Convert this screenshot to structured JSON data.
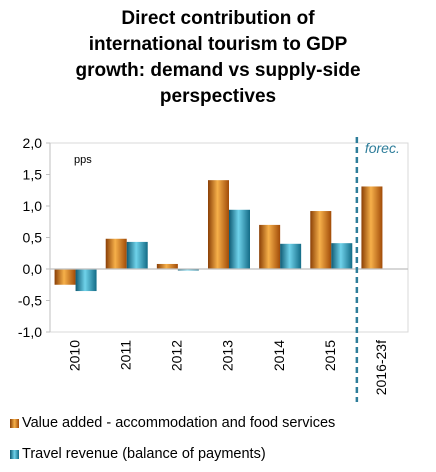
{
  "chart_data": {
    "type": "bar",
    "title_lines": [
      "Direct contribution of",
      "international tourism to GDP",
      "growth: demand vs supply-side",
      "perspectives"
    ],
    "unit_label": "pps",
    "forecast_label": "forec.",
    "categories": [
      "2010",
      "2011",
      "2012",
      "2013",
      "2014",
      "2015",
      "2016-23f"
    ],
    "series": [
      {
        "name": "Value added - accommodation and food services",
        "values": [
          -0.25,
          0.48,
          0.08,
          1.41,
          0.7,
          0.92,
          1.31
        ],
        "color": "#e07b1a"
      },
      {
        "name": "Travel revenue (balance of payments)",
        "values": [
          -0.35,
          0.43,
          -0.02,
          0.94,
          0.4,
          0.41,
          null
        ],
        "color": "#2a9bbd"
      }
    ],
    "ylim": [
      -1.0,
      2.0
    ],
    "yticks": [
      "-1,0",
      "-0,5",
      "0,0",
      "0,5",
      "1,0",
      "1,5",
      "2,0"
    ],
    "forecast_divider_after": "2015",
    "forecast_divider_color": "#2e7d9a",
    "grid": false,
    "legend_position": "bottom"
  }
}
